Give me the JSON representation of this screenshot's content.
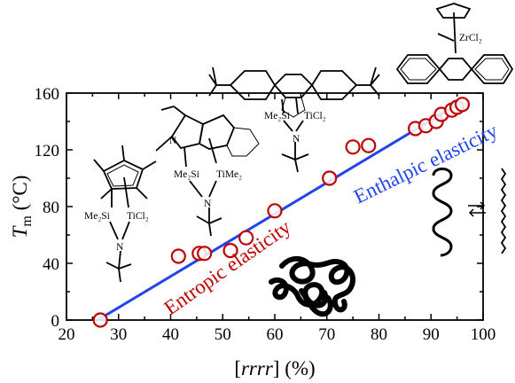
{
  "chart_data": {
    "type": "scatter",
    "xlabel": "[rrrr] (%)",
    "ylabel": "Tm (°C)",
    "ylabel_parts": {
      "main": "T",
      "sub": "m",
      "unit": " (°C)"
    },
    "xlabel_parts": {
      "open": "[",
      "italic": "rrrr",
      "close": "] (%)"
    },
    "xlim": [
      20,
      100
    ],
    "ylim": [
      0,
      160
    ],
    "xticks": [
      20,
      30,
      40,
      50,
      60,
      70,
      80,
      90,
      100
    ],
    "yticks": [
      0,
      40,
      80,
      120,
      160
    ],
    "grid": false,
    "series": [
      {
        "type": "scatter",
        "color": "#c00000",
        "marker": "open-circle",
        "points": [
          [
            26.5,
            0
          ],
          [
            41.5,
            45
          ],
          [
            45.5,
            47
          ],
          [
            46.5,
            47
          ],
          [
            51.5,
            49
          ],
          [
            54.5,
            58
          ],
          [
            60,
            77
          ],
          [
            70.5,
            100
          ],
          [
            75,
            122
          ],
          [
            78,
            123
          ],
          [
            87,
            135
          ],
          [
            89,
            137
          ],
          [
            91,
            140
          ],
          [
            92,
            145
          ],
          [
            94,
            148
          ],
          [
            95,
            150
          ],
          [
            96,
            152
          ]
        ]
      },
      {
        "type": "line",
        "color": "#2244ee",
        "points": [
          [
            26,
            0
          ],
          [
            96,
            154
          ]
        ]
      }
    ],
    "annotations": [
      {
        "text": "Entropic elasticity",
        "color": "#c00000"
      },
      {
        "text": "Enthalpic elasticity",
        "color": "#2244ee"
      }
    ]
  },
  "chemistry_labels": {
    "me2si_1": "Me₂Si",
    "ticl2_1": "TiCl₂",
    "n_1": "N",
    "me2si_2": "Me₂Si",
    "time2_2": "TiMe₂",
    "n_2": "N",
    "me2si_3": "Me₂Si",
    "ticl2_3": "TiCl₂",
    "n_3": "N",
    "zrcl2_4": "ZrCl₂"
  }
}
